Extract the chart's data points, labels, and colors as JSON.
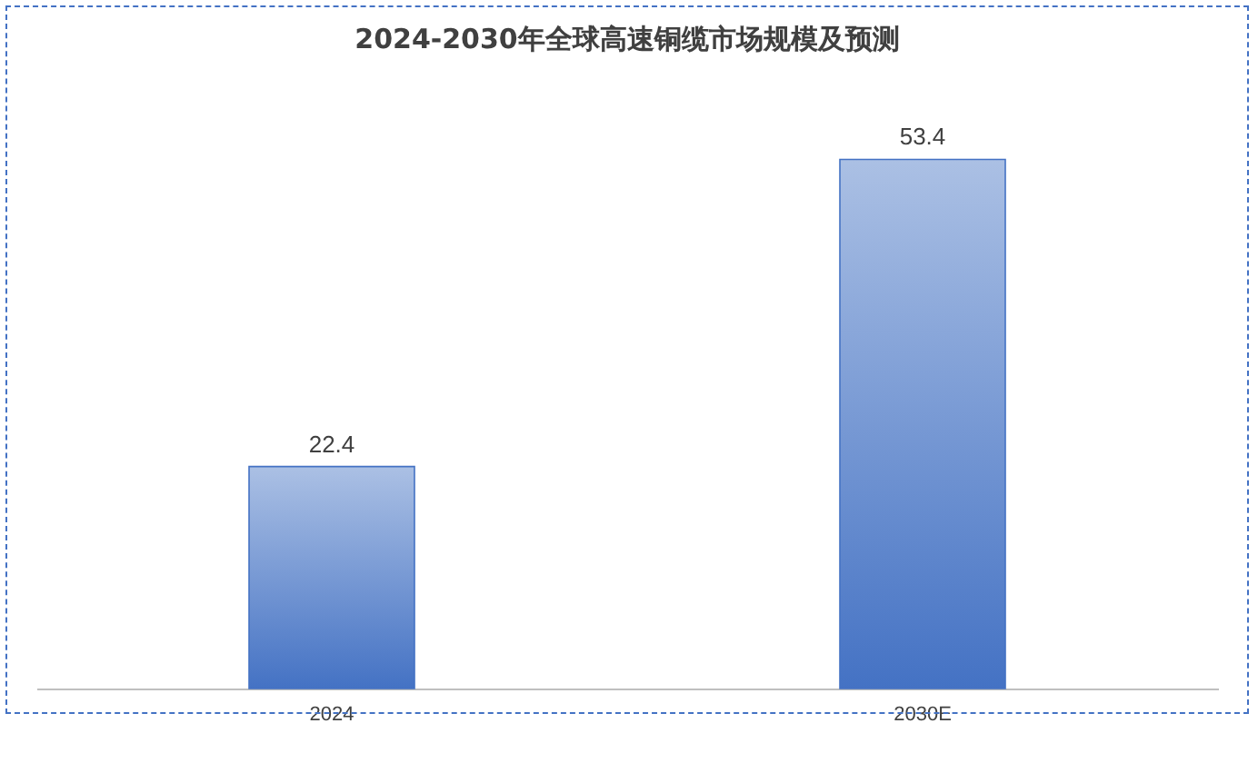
{
  "chart_data": {
    "type": "bar",
    "title": "2024-2030年全球高速铜缆市场规模及预测",
    "categories": [
      "2024",
      "2030E"
    ],
    "values": [
      22.4,
      53.4
    ],
    "color": "#4472c4",
    "data_labels": true
  }
}
